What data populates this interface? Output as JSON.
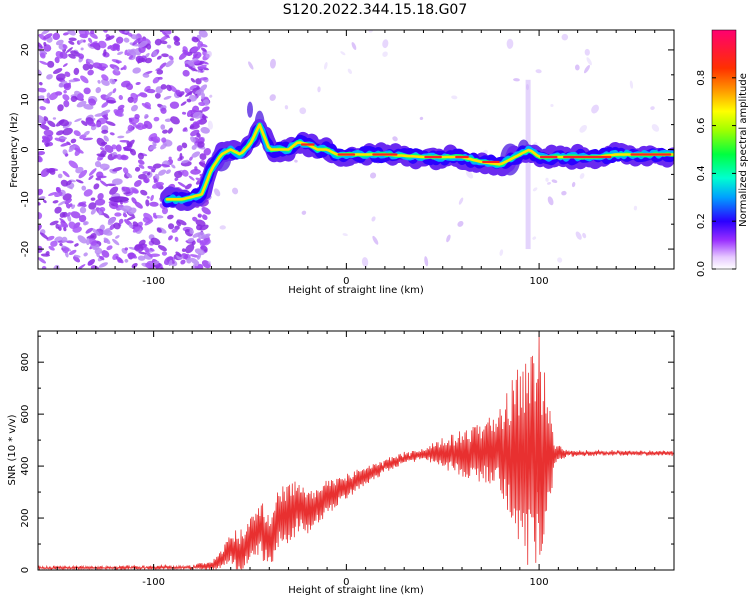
{
  "title": "S120.2022.344.15.18.G07",
  "chart_data": [
    {
      "type": "heatmap",
      "xlabel": "Height of straight line (km)",
      "ylabel": "Frequency (Hz)",
      "xlim": [
        -160,
        170
      ],
      "ylim": [
        -24,
        24
      ],
      "x_ticks": [
        -100,
        0,
        100
      ],
      "y_ticks": [
        -20,
        -10,
        0,
        10,
        20
      ],
      "grid": false,
      "colorbar": {
        "label": "Normalized spectral amplitude",
        "range": [
          0.0,
          1.0
        ],
        "ticks": [
          0.0,
          0.2,
          0.4,
          0.6,
          0.8
        ]
      },
      "ridge": {
        "x": [
          -93,
          -85,
          -75,
          -70,
          -65,
          -60,
          -55,
          -50,
          -45,
          -40,
          -35,
          -30,
          -25,
          -20,
          -15,
          -10,
          -5,
          0,
          20,
          40,
          60,
          70,
          80,
          85,
          90,
          95,
          100,
          110,
          120,
          130,
          140,
          150,
          170
        ],
        "y": [
          -10,
          -10,
          -9,
          -4,
          -1,
          0,
          -1,
          1,
          5,
          0,
          0,
          0,
          1.5,
          1,
          0,
          0,
          -1,
          -1,
          -1,
          -1.5,
          -1.5,
          -2.5,
          -3,
          -2,
          -1,
          0,
          -1.5,
          -1.5,
          -1.5,
          -1.5,
          -1,
          -1,
          -1
        ]
      }
    },
    {
      "type": "line",
      "xlabel": "Height of straight line (km)",
      "ylabel": "SNR (10 * v/v)",
      "xlim": [
        -160,
        170
      ],
      "ylim": [
        0,
        920
      ],
      "x_ticks": [
        -100,
        0,
        100
      ],
      "y_ticks": [
        0,
        200,
        400,
        600,
        800
      ],
      "grid": false,
      "line_color": "#e83030",
      "envelope": {
        "x": [
          -160,
          -120,
          -80,
          -70,
          -65,
          -60,
          -55,
          -50,
          -45,
          -40,
          -35,
          -30,
          -25,
          -20,
          -10,
          0,
          10,
          20,
          30,
          40,
          50,
          60,
          70,
          80,
          85,
          90,
          95,
          100,
          105,
          110,
          120,
          140,
          170
        ],
        "y": [
          8,
          8,
          10,
          15,
          40,
          90,
          60,
          130,
          160,
          120,
          200,
          220,
          250,
          220,
          280,
          320,
          360,
          400,
          430,
          445,
          450,
          450,
          455,
          460,
          440,
          420,
          430,
          440,
          440,
          450,
          450,
          450,
          450
        ]
      },
      "spread": {
        "x": [
          -160,
          -80,
          -65,
          -55,
          -45,
          -30,
          -20,
          0,
          20,
          40,
          50,
          60,
          70,
          80,
          85,
          90,
          95,
          100,
          105,
          108,
          115,
          170
        ],
        "y": [
          6,
          6,
          30,
          90,
          110,
          120,
          80,
          50,
          25,
          20,
          60,
          90,
          120,
          160,
          280,
          380,
          420,
          420,
          300,
          40,
          10,
          8
        ]
      },
      "peak": {
        "x": 100,
        "y": 915
      }
    }
  ]
}
